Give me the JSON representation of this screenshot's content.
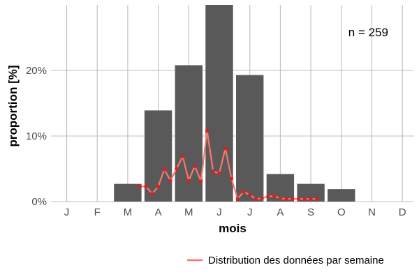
{
  "chart_data": {
    "type": "bar",
    "title": "",
    "xlabel": "mois",
    "ylabel": "proportion [%]",
    "categories": [
      "J",
      "F",
      "M",
      "A",
      "M",
      "J",
      "J",
      "A",
      "S",
      "O",
      "N",
      "D"
    ],
    "values": [
      0,
      0,
      2.7,
      13.9,
      20.8,
      30.0,
      19.3,
      4.2,
      2.7,
      1.9,
      0,
      0
    ],
    "ylim": [
      0,
      30
    ],
    "yticks": [
      0,
      10,
      20
    ],
    "ytick_labels": [
      "0%",
      "10%",
      "20%"
    ],
    "grid": true,
    "bar_color": "#595959",
    "annotation": "n = 259",
    "line_series": {
      "name": "Distribution des données par semaine",
      "color": "#f8766d",
      "point_color": "#e41a1c",
      "x": [
        3.4,
        3.6,
        3.8,
        4.0,
        4.2,
        4.4,
        4.6,
        4.8,
        5.0,
        5.2,
        5.4,
        5.6,
        5.8,
        6.0,
        6.2,
        6.4,
        6.6,
        6.8,
        7.0,
        7.2,
        7.4,
        7.6,
        7.8,
        8.0,
        8.2,
        8.4,
        8.6,
        8.8,
        9.0,
        9.2
      ],
      "y": [
        2.3,
        2.3,
        1.2,
        2.3,
        4.9,
        3.2,
        5.0,
        6.9,
        3.2,
        5.4,
        3.1,
        10.8,
        4.6,
        4.3,
        8.1,
        3.5,
        0.4,
        1.5,
        1.0,
        0.4,
        0.5,
        0.8,
        0.8,
        0.5,
        0.4,
        0.4,
        0.4,
        0.4,
        0.4,
        0.4
      ]
    },
    "legend_position": "bottom-right"
  }
}
